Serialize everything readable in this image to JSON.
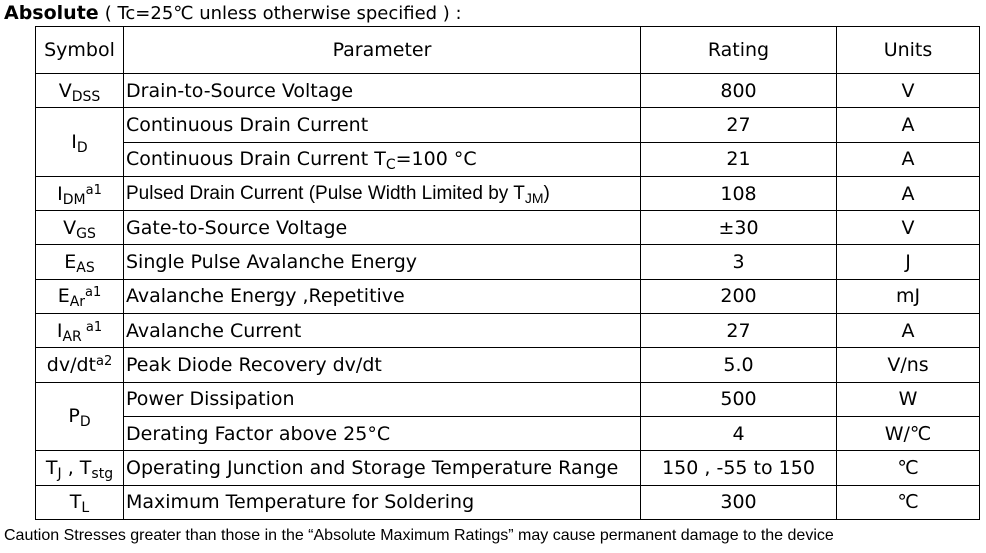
{
  "header": {
    "title_bold": "Absolute",
    "title_condition": "( Tc=25℃  unless otherwise specified ) :"
  },
  "table": {
    "headers": {
      "symbol": "Symbol",
      "parameter": "Parameter",
      "rating": "Rating",
      "units": "Units"
    },
    "rows": [
      {
        "sym_main": "V",
        "sym_sub": "DSS",
        "sym_sup": "",
        "parameter": "Drain-to-Source Voltage",
        "rating": "800",
        "units": "V"
      },
      {
        "sym_main": "I",
        "sym_sub": "D",
        "sym_sup": "",
        "parameter": "Continuous Drain Current",
        "rating": "27",
        "units": "A"
      },
      {
        "parameter": "Continuous Drain Current T",
        "param_sub": "C",
        "param_suffix": "=100 °C",
        "rating": "21",
        "units": "A"
      },
      {
        "sym_main": "I",
        "sym_sub": "DM",
        "sym_sup": "a1",
        "parameter": "Pulsed Drain Current (Pulse Width Limited by T",
        "param_sub": "JM",
        "param_suffix": ")",
        "rating": "108",
        "units": "A"
      },
      {
        "sym_main": "V",
        "sym_sub": "GS",
        "sym_sup": "",
        "parameter": "Gate-to-Source Voltage",
        "rating": "±30",
        "units": "V"
      },
      {
        "sym_main": "E",
        "sym_sub": "AS",
        "sym_sup": "",
        "parameter": "Single Pulse Avalanche Energy",
        "rating": "3",
        "units": "J"
      },
      {
        "sym_main": "E",
        "sym_sub": "Ar",
        "sym_sup": "a1",
        "parameter": "Avalanche Energy ,Repetitive",
        "rating": "200",
        "units": "mJ"
      },
      {
        "sym_main": "I",
        "sym_sub": "AR",
        "sym_sup": " a1",
        "parameter": "Avalanche Current",
        "rating": "27",
        "units": "A"
      },
      {
        "sym_main": "dv/dt",
        "sym_sub": "",
        "sym_sup": "a2",
        "parameter": "Peak Diode Recovery dv/dt",
        "rating": "5.0",
        "units": "V/ns"
      },
      {
        "sym_main": "P",
        "sym_sub": "D",
        "sym_sup": "",
        "parameter": "Power Dissipation",
        "rating": "500",
        "units": "W"
      },
      {
        "parameter": "Derating Factor above 25°C",
        "rating": "4",
        "units": "W/℃"
      },
      {
        "sym_main": "T",
        "sym_sub": "J",
        "sym_mid": " , T",
        "sym_sub2": "stg",
        "parameter": "Operating Junction and Storage Temperature Range",
        "rating": "150 , -55 to 150",
        "units": "℃"
      },
      {
        "sym_main": "T",
        "sym_sub": "L",
        "sym_sup": "",
        "parameter": "Maximum Temperature for Soldering",
        "rating": "300",
        "units": "℃"
      }
    ]
  },
  "footer": {
    "caution": "Caution Stresses greater than those in the  “Absolute Maximum Ratings”  may cause permanent damage to the device"
  }
}
